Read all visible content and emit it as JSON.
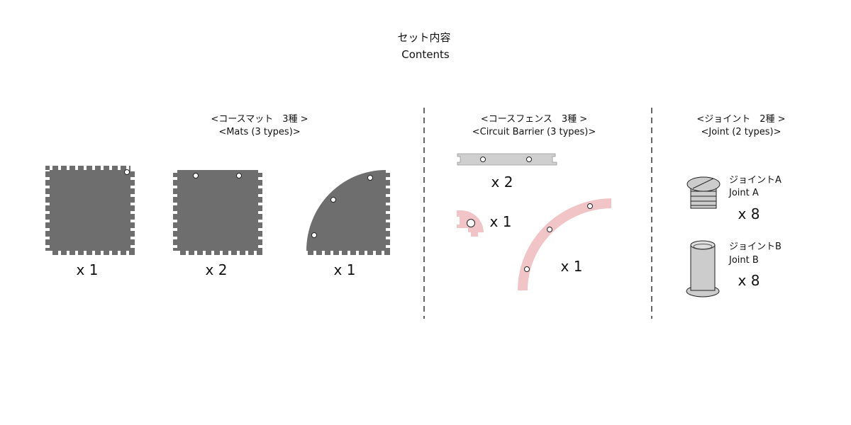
{
  "title": {
    "ja": "セット内容",
    "en": "Contents"
  },
  "sections": {
    "mats": {
      "ja": "<コースマット　3種 >",
      "en": "<Mats (3 types)>",
      "items": [
        {
          "qty": "x 1"
        },
        {
          "qty": "x 2"
        },
        {
          "qty": "x 1"
        }
      ]
    },
    "barrier": {
      "ja": "<コースフェンス　3種 >",
      "en": "<Circuit Barrier (3 types)>",
      "items": [
        {
          "qty": "x 2"
        },
        {
          "qty": "x 1"
        },
        {
          "qty": "x 1"
        }
      ]
    },
    "joint": {
      "ja": "<ジョイント　2種 >",
      "en": "<Joint (2 types)>",
      "items": [
        {
          "name_ja": "ジョイントA",
          "name_en": "Joint A",
          "qty": "x 8"
        },
        {
          "name_ja": "ジョイントB",
          "name_en": "Joint B",
          "qty": "x 8"
        }
      ]
    }
  },
  "colors": {
    "mat": "#6e6e6e",
    "barrier_straight": "#cfcfcf",
    "barrier_curve": "#f1c4c8",
    "joint": "#cccccc"
  }
}
